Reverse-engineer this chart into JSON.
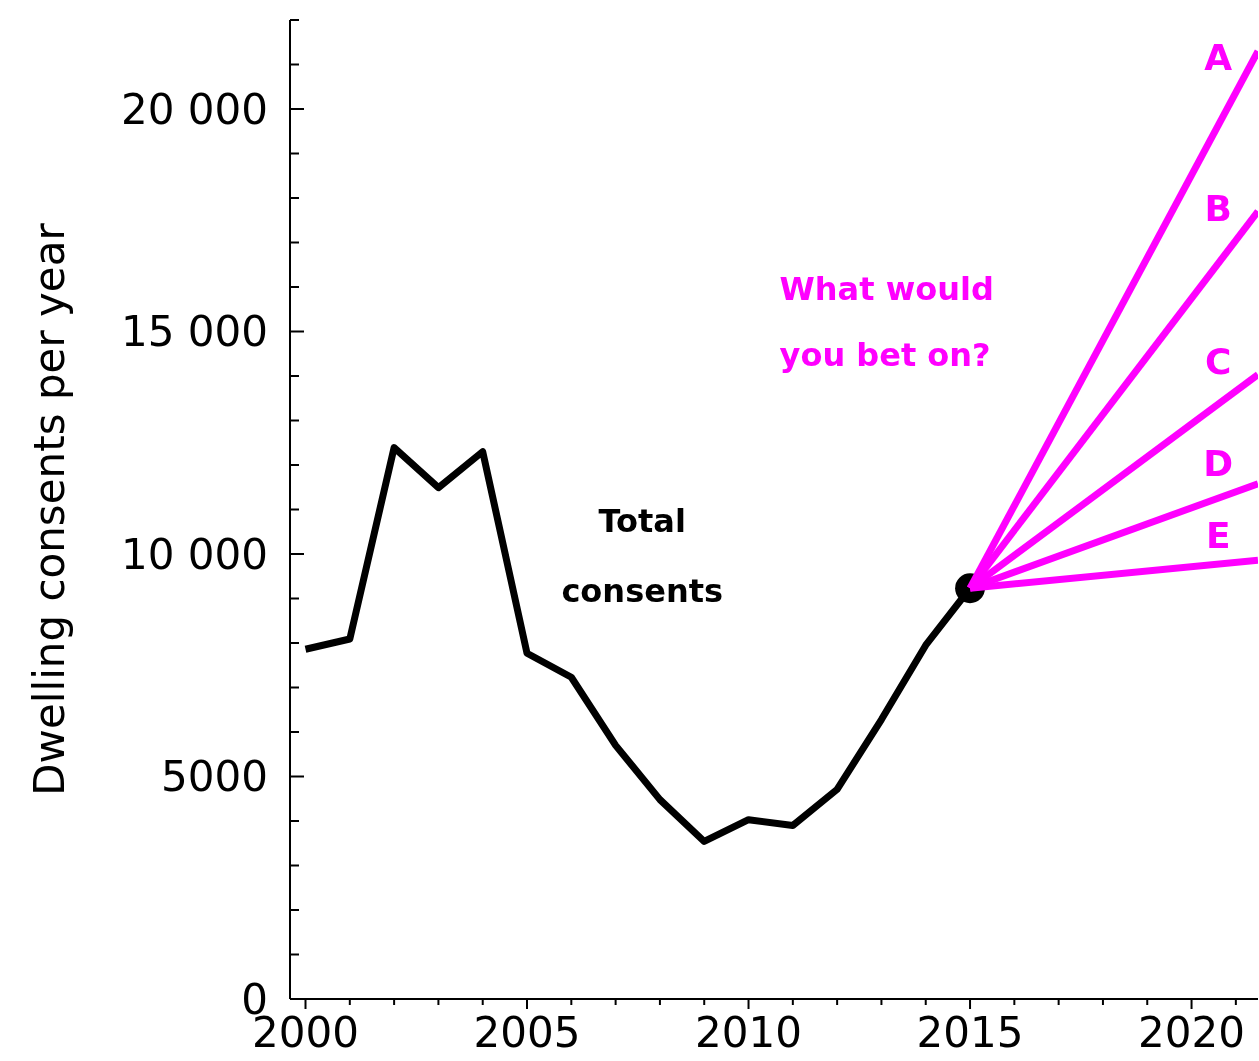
{
  "chart_data": {
    "type": "line",
    "ylabel": "Dwelling consents per year",
    "xlim": [
      1999.65,
      2021.5
    ],
    "ylim": [
      0,
      22000
    ],
    "xticks": [
      2000,
      {
        "value": 2001,
        "label": null
      },
      {
        "value": 2002,
        "label": null
      },
      {
        "value": 2003,
        "label": null
      },
      {
        "value": 2004,
        "label": null
      },
      2005,
      {
        "value": 2006,
        "label": null
      },
      {
        "value": 2007,
        "label": null
      },
      {
        "value": 2008,
        "label": null
      },
      {
        "value": 2009,
        "label": null
      },
      2010,
      {
        "value": 2011,
        "label": null
      },
      {
        "value": 2012,
        "label": null
      },
      {
        "value": 2013,
        "label": null
      },
      {
        "value": 2014,
        "label": null
      },
      2015,
      {
        "value": 2016,
        "label": null
      },
      {
        "value": 2017,
        "label": null
      },
      {
        "value": 2018,
        "label": null
      },
      {
        "value": 2019,
        "label": null
      },
      2020,
      {
        "value": 2021,
        "label": null
      }
    ],
    "yticks": [
      0,
      {
        "value": 1000,
        "label": null
      },
      {
        "value": 2000,
        "label": null
      },
      {
        "value": 3000,
        "label": null
      },
      {
        "value": 4000,
        "label": null
      },
      5000,
      {
        "value": 6000,
        "label": null
      },
      {
        "value": 7000,
        "label": null
      },
      {
        "value": 8000,
        "label": null
      },
      {
        "value": 9000,
        "label": null
      },
      {
        "value": 10000,
        "label": "10 000"
      },
      {
        "value": 11000,
        "label": null
      },
      {
        "value": 12000,
        "label": null
      },
      {
        "value": 13000,
        "label": null
      },
      {
        "value": 14000,
        "label": null
      },
      {
        "value": 15000,
        "label": "15 000"
      },
      {
        "value": 16000,
        "label": null
      },
      {
        "value": 17000,
        "label": null
      },
      {
        "value": 18000,
        "label": null
      },
      {
        "value": 19000,
        "label": null
      },
      {
        "value": 20000,
        "label": "20 000"
      },
      {
        "value": 21000,
        "label": null
      },
      {
        "value": 22000,
        "label": null
      }
    ],
    "marker": "none",
    "line_style": "solid",
    "series": [
      {
        "name": "Total consents",
        "color": "#000000",
        "x": [
          2000,
          2001,
          2002,
          2003,
          2004,
          2005,
          2006,
          2007,
          2008,
          2009,
          2010,
          2011,
          2012,
          2013,
          2014,
          2015
        ],
        "values": [
          7860,
          8090,
          12390,
          11490,
          12300,
          7770,
          7230,
          5700,
          4480,
          3540,
          4030,
          3900,
          4710,
          6280,
          7950,
          9230
        ]
      },
      {
        "type": "scatter",
        "marker": "circle",
        "color": "#000000",
        "x": [
          2015
        ],
        "values": [
          9230
        ]
      },
      {
        "name": "A",
        "color": "#ff00ff",
        "x": [
          2015,
          2021.5
        ],
        "values": [
          9230,
          21300
        ]
      },
      {
        "name": "B",
        "color": "#ff00ff",
        "x": [
          2015,
          2021.5
        ],
        "values": [
          9230,
          17700
        ]
      },
      {
        "name": "C",
        "color": "#ff00ff",
        "x": [
          2015,
          2021.5
        ],
        "values": [
          9230,
          14030
        ]
      },
      {
        "name": "D",
        "color": "#ff00ff",
        "x": [
          2015,
          2021.5
        ],
        "values": [
          9230,
          11580
        ]
      },
      {
        "name": "E",
        "color": "#ff00ff",
        "x": [
          2015,
          2021.5
        ],
        "values": [
          9230,
          9860
        ]
      }
    ],
    "annotations": [
      "What would you bet on?"
    ]
  }
}
